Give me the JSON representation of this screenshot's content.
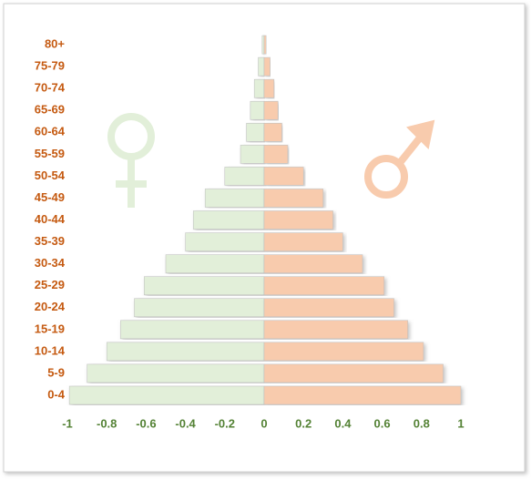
{
  "chart_data": {
    "type": "bar",
    "orientation": "horizontal",
    "categories": [
      "0-4",
      "5-9",
      "10-14",
      "15-19",
      "20-24",
      "25-29",
      "30-34",
      "35-39",
      "40-44",
      "45-49",
      "50-54",
      "55-59",
      "60-64",
      "65-69",
      "70-74",
      "75-79",
      "80+"
    ],
    "series": [
      {
        "color": "#e2efd9",
        "values": [
          -0.99,
          -0.9,
          -0.8,
          -0.73,
          -0.66,
          -0.61,
          -0.5,
          -0.4,
          -0.36,
          -0.3,
          -0.2,
          -0.12,
          -0.09,
          -0.07,
          -0.05,
          -0.03,
          -0.01
        ]
      },
      {
        "color": "#f8cbad",
        "values": [
          1.0,
          0.91,
          0.81,
          0.73,
          0.66,
          0.61,
          0.5,
          0.4,
          0.35,
          0.3,
          0.2,
          0.12,
          0.09,
          0.07,
          0.05,
          0.03,
          0.01
        ]
      }
    ],
    "xlim": [
      -1,
      1
    ],
    "xticks": [
      -1,
      -0.8,
      -0.6,
      -0.4,
      -0.2,
      0,
      0.2,
      0.4,
      0.6,
      0.8,
      1
    ],
    "grid": false
  }
}
